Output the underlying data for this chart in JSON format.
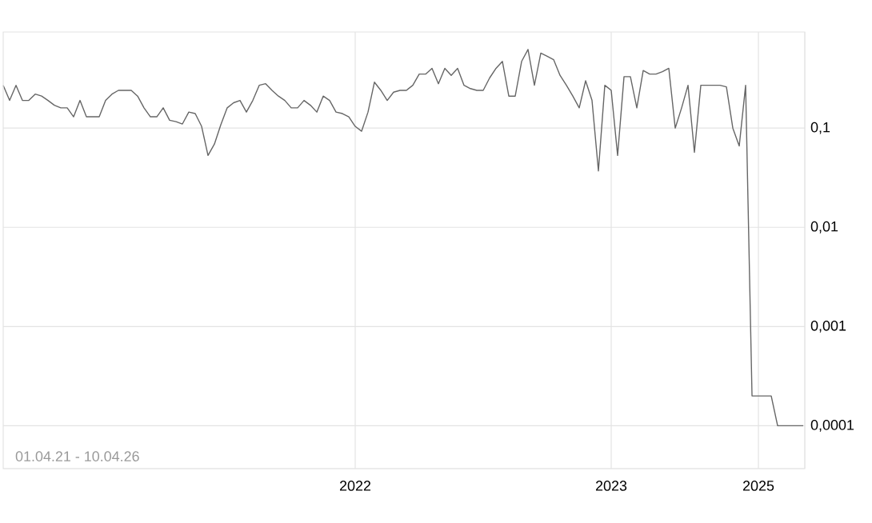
{
  "chart_data": {
    "type": "line",
    "categories": [
      null,
      null,
      null,
      null,
      null,
      null,
      null,
      null,
      null,
      null,
      null,
      null,
      null,
      null,
      null,
      null,
      null,
      null,
      null,
      null,
      null,
      null,
      null,
      null,
      null,
      null,
      null,
      null,
      null,
      null,
      null,
      null,
      null,
      null,
      null,
      null,
      null,
      null,
      null,
      null,
      null,
      null,
      null,
      null,
      null,
      null,
      null,
      null,
      null,
      null,
      null,
      null,
      null,
      null,
      null,
      "2022",
      null,
      null,
      null,
      null,
      null,
      null,
      null,
      null,
      null,
      null,
      null,
      null,
      null,
      null,
      null,
      null,
      null,
      null,
      null,
      null,
      null,
      null,
      null,
      null,
      null,
      null,
      null,
      null,
      null,
      null,
      null,
      null,
      null,
      null,
      null,
      null,
      null,
      null,
      null,
      "2023",
      null,
      null,
      null,
      null,
      null,
      null,
      null,
      null,
      null,
      null,
      null,
      null,
      null,
      null,
      null,
      null,
      null,
      null,
      null,
      null,
      null,
      null,
      "2025",
      null,
      null,
      null,
      null,
      null,
      null,
      null
    ],
    "series": [
      {
        "color": "#666666",
        "values": [
          0.27,
          0.19,
          0.27,
          0.19,
          0.19,
          0.22,
          0.21,
          0.19,
          0.17,
          0.16,
          0.16,
          0.13,
          0.19,
          0.13,
          0.13,
          0.13,
          0.19,
          0.22,
          0.24,
          0.24,
          0.24,
          0.21,
          0.16,
          0.13,
          0.13,
          0.16,
          0.12,
          0.116,
          0.11,
          0.145,
          0.14,
          0.104,
          0.053,
          0.069,
          0.108,
          0.16,
          0.18,
          0.19,
          0.145,
          0.19,
          0.27,
          0.28,
          0.24,
          0.21,
          0.19,
          0.16,
          0.16,
          0.19,
          0.17,
          0.145,
          0.21,
          0.19,
          0.145,
          0.14,
          0.13,
          0.104,
          0.093,
          0.145,
          0.29,
          0.24,
          0.19,
          0.23,
          0.24,
          0.24,
          0.27,
          0.35,
          0.35,
          0.4,
          0.28,
          0.4,
          0.34,
          0.4,
          0.27,
          0.25,
          0.24,
          0.24,
          0.32,
          0.4,
          0.47,
          0.21,
          0.21,
          0.47,
          0.62,
          0.27,
          0.57,
          0.53,
          0.49,
          0.34,
          0.27,
          0.21,
          0.16,
          0.3,
          0.19,
          0.037,
          0.27,
          0.24,
          0.053,
          0.33,
          0.33,
          0.16,
          0.38,
          0.35,
          0.35,
          0.37,
          0.4,
          0.1,
          0.16,
          0.27,
          0.057,
          0.27,
          0.27,
          0.27,
          0.27,
          0.26,
          0.1,
          0.066,
          0.27,
          0.0002,
          0.0002,
          0.0002,
          0.0002,
          0.0001,
          0.0001,
          0.0001,
          0.0001,
          0.0001
        ]
      }
    ],
    "log": "y",
    "ylim": [
      3.7e-05,
      0.93
    ],
    "yticks": [
      {
        "value": 0.0001,
        "label": "0,0001"
      },
      {
        "value": 0.001,
        "label": "0,001"
      },
      {
        "value": 0.01,
        "label": "0,01"
      },
      {
        "value": 0.1,
        "label": "0,1"
      }
    ],
    "grid": true,
    "annotations": [
      "01.04.21 - 10.04.26"
    ]
  }
}
